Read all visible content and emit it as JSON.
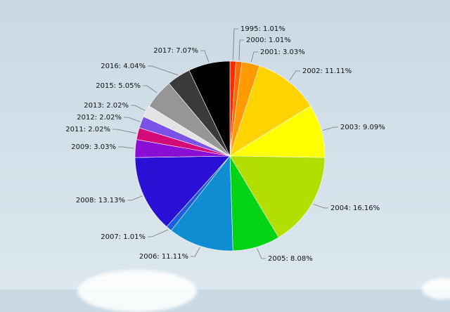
{
  "chart_data": {
    "type": "pie",
    "slices": [
      {
        "label": "1995",
        "value": 1.01,
        "text": "1995: 1.01%",
        "color": "#ff2a00"
      },
      {
        "label": "2000",
        "value": 1.01,
        "text": "2000: 1.01%",
        "color": "#ff6a00"
      },
      {
        "label": "2001",
        "value": 3.03,
        "text": "2001: 3.03%",
        "color": "#ff9a00"
      },
      {
        "label": "2002",
        "value": 11.11,
        "text": "2002: 11.11%",
        "color": "#ffd300"
      },
      {
        "label": "2003",
        "value": 9.09,
        "text": "2003: 9.09%",
        "color": "#ffff00"
      },
      {
        "label": "2004",
        "value": 16.16,
        "text": "2004: 16.16%",
        "color": "#b3df00"
      },
      {
        "label": "2005",
        "value": 8.08,
        "text": "2005: 8.08%",
        "color": "#00d414"
      },
      {
        "label": "2006",
        "value": 11.11,
        "text": "2006: 11.11%",
        "color": "#0e8dd2"
      },
      {
        "label": "2007",
        "value": 1.01,
        "text": "2007: 1.01%",
        "color": "#1d5fe0"
      },
      {
        "label": "2008",
        "value": 13.13,
        "text": "2008: 13.13%",
        "color": "#2a0fd4"
      },
      {
        "label": "2009",
        "value": 3.03,
        "text": "2009: 3.03%",
        "color": "#8b0ed4"
      },
      {
        "label": "2011",
        "value": 2.02,
        "text": "2011: 2.02%",
        "color": "#d40a78"
      },
      {
        "label": "2012",
        "value": 2.02,
        "text": "2012: 2.02%",
        "color": "#7a52e8"
      },
      {
        "label": "2013",
        "value": 2.02,
        "text": "2013: 2.02%",
        "color": "#e3e3e3"
      },
      {
        "label": "2015",
        "value": 5.05,
        "text": "2015: 5.05%",
        "color": "#969696"
      },
      {
        "label": "2016",
        "value": 4.04,
        "text": "2016: 4.04%",
        "color": "#3a3a3a"
      },
      {
        "label": "2017",
        "value": 7.07,
        "text": "2017: 7.07%",
        "color": "#000000"
      }
    ]
  }
}
